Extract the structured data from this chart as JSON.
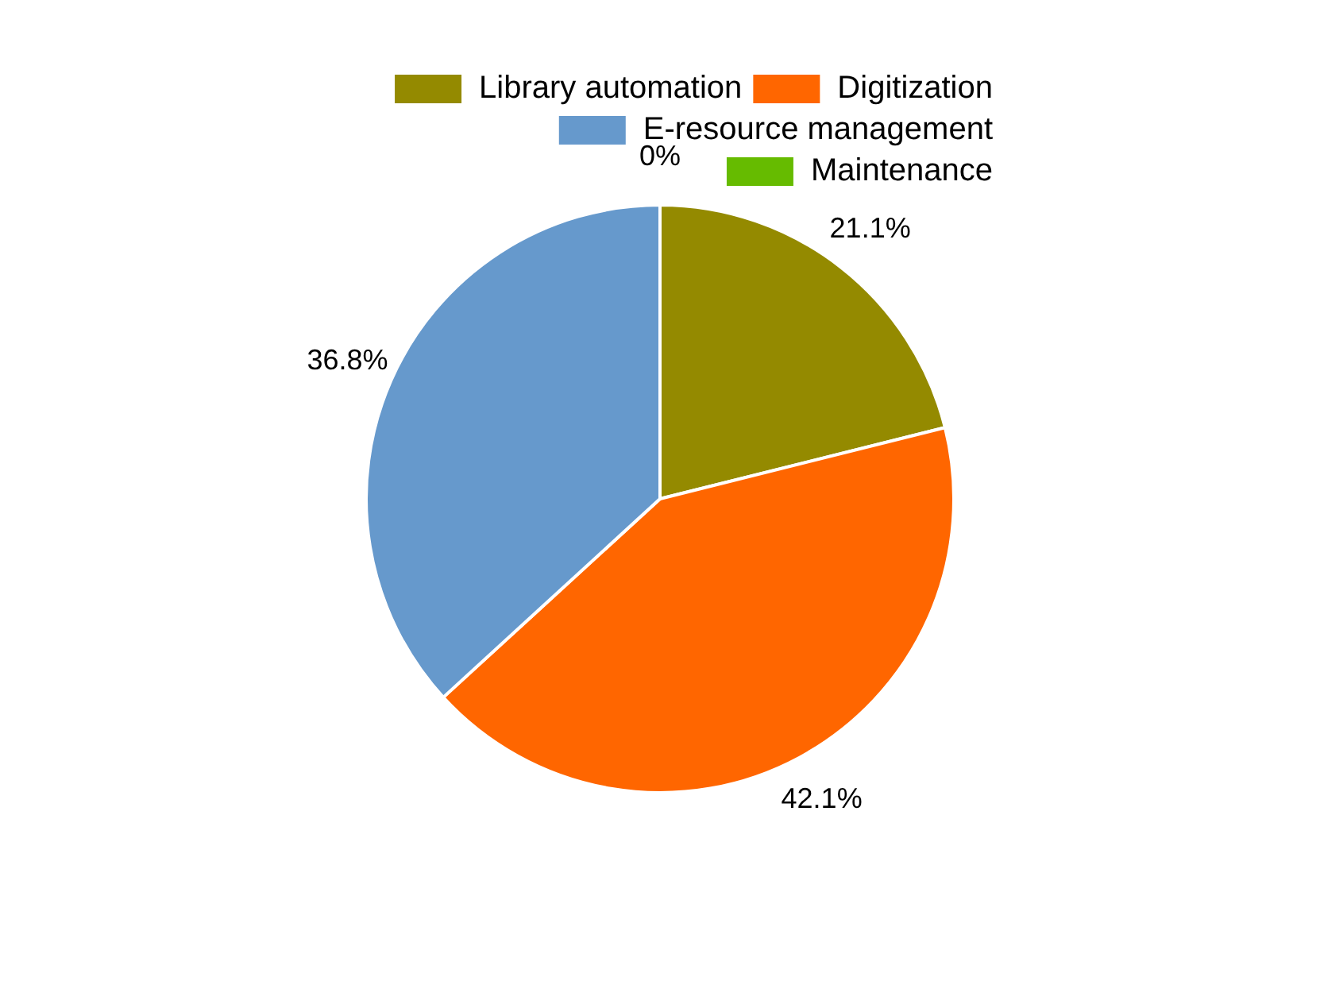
{
  "chart_data": {
    "type": "pie",
    "categories": [
      "Library automation",
      "Digitization",
      "E-resource management",
      "Maintenance"
    ],
    "values": [
      21.1,
      42.1,
      36.8,
      0
    ],
    "colors": [
      "#948a00",
      "#ff6600",
      "#6699cc",
      "#66bb00"
    ],
    "value_labels": [
      "21.1%",
      "42.1%",
      "36.8%",
      "0%"
    ],
    "legend": "top right"
  }
}
